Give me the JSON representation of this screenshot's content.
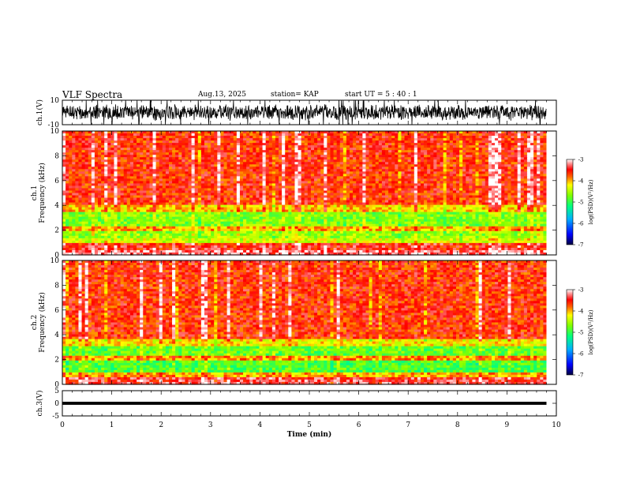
{
  "header": {
    "title": "VLF Spectra",
    "date": "Aug.13, 2025",
    "station": "station= KAP",
    "start_time": "start  UT =   5 : 40 : 1"
  },
  "chart_data": [
    {
      "type": "line",
      "panel": "ch1-waveform",
      "ylabel": "ch.1(V)",
      "ylim": [
        -10,
        10
      ],
      "yticks": [
        "10",
        "-10"
      ],
      "xlim": [
        0,
        10
      ],
      "x_end": 9.8,
      "series": [
        {
          "name": "ch.1 voltage",
          "baseline": 0,
          "approx_envelope": [
            -7,
            7
          ]
        }
      ]
    },
    {
      "type": "heatmap",
      "panel": "ch1-spectrogram",
      "ylabel": "ch.1\nFrequency (kHz)",
      "ylim": [
        0,
        10
      ],
      "yticks": [
        "0",
        "2",
        "4",
        "6",
        "8",
        "10"
      ],
      "xlim": [
        0,
        10
      ],
      "x_end": 9.8,
      "dominant_value": -3.6,
      "bands": [
        {
          "f_lo": 0.0,
          "f_hi": 0.3,
          "value": -3.2
        },
        {
          "f_lo": 0.3,
          "f_hi": 0.9,
          "value": -3.5
        },
        {
          "f_lo": 0.9,
          "f_hi": 1.4,
          "value": -4.4
        },
        {
          "f_lo": 1.4,
          "f_hi": 2.0,
          "value": -4.6
        },
        {
          "f_lo": 2.0,
          "f_hi": 2.4,
          "value": -4.0
        },
        {
          "f_lo": 2.4,
          "f_hi": 3.4,
          "value": -4.7
        },
        {
          "f_lo": 3.4,
          "f_hi": 4.0,
          "value": -4.1
        },
        {
          "f_lo": 4.0,
          "f_hi": 10.0,
          "value": -3.6
        }
      ],
      "colorbar": {
        "label": "log(PSD)(V²/Hz)",
        "range": [
          -7,
          -3
        ],
        "ticks": [
          "-3",
          "-4",
          "-5",
          "-6",
          "-7"
        ]
      }
    },
    {
      "type": "heatmap",
      "panel": "ch2-spectrogram",
      "ylabel": "ch.2\nFrequency (kHz)",
      "ylim": [
        0,
        10
      ],
      "yticks": [
        "0",
        "2",
        "4",
        "6",
        "8",
        "10"
      ],
      "xlim": [
        0,
        10
      ],
      "x_end": 9.8,
      "dominant_value": -3.6,
      "bands": [
        {
          "f_lo": 0.0,
          "f_hi": 0.5,
          "value": -3.4
        },
        {
          "f_lo": 0.5,
          "f_hi": 0.9,
          "value": -4.0
        },
        {
          "f_lo": 0.9,
          "f_hi": 1.9,
          "value": -4.9
        },
        {
          "f_lo": 1.9,
          "f_hi": 2.3,
          "value": -3.9
        },
        {
          "f_lo": 2.3,
          "f_hi": 3.0,
          "value": -4.8
        },
        {
          "f_lo": 3.0,
          "f_hi": 3.6,
          "value": -4.2
        },
        {
          "f_lo": 3.6,
          "f_hi": 10.0,
          "value": -3.6
        }
      ],
      "colorbar": {
        "label": "log(PSD)(V²/Hz)",
        "range": [
          -7,
          -3
        ],
        "ticks": [
          "-3",
          "-4",
          "-5",
          "-6",
          "-7"
        ]
      }
    },
    {
      "type": "line",
      "panel": "ch3-waveform",
      "ylabel": "ch.3(V)",
      "ylim": [
        -5,
        5
      ],
      "yticks": [
        "5",
        "0",
        "-5"
      ],
      "xlim": [
        0,
        10
      ],
      "x_end": 9.8,
      "xlabel": "Time  (min)",
      "xticks": [
        "0",
        "1",
        "2",
        "3",
        "4",
        "5",
        "6",
        "7",
        "8",
        "9",
        "10"
      ],
      "series": [
        {
          "name": "ch.3 voltage",
          "level": 0,
          "thickness_v": 1.2
        }
      ]
    }
  ]
}
